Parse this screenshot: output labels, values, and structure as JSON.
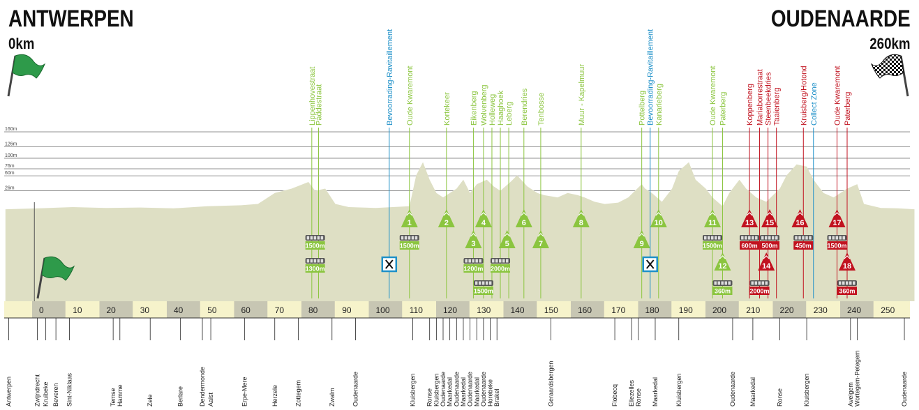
{
  "header": {
    "start_name": "ANTWERPEN",
    "start_km": "0km",
    "finish_name": "OUDENAARDE",
    "finish_km": "260km"
  },
  "colors": {
    "profile_fill": "#dedfc4",
    "axis_band": "#f6f3cb",
    "axis_block": "#c7c6b3",
    "green": "#8bc53f",
    "red": "#c1121f",
    "blue": "#1e90c8",
    "grid": "#777777"
  },
  "chart_data": {
    "type": "area",
    "x_axis": {
      "min": -10,
      "max": 260,
      "ticks": [
        0,
        10,
        20,
        30,
        40,
        50,
        60,
        70,
        80,
        90,
        100,
        110,
        120,
        130,
        140,
        150,
        160,
        170,
        180,
        190,
        200,
        210,
        220,
        230,
        240,
        250
      ]
    },
    "altitude_labels": [
      "160m",
      "126m",
      "100m",
      "76m",
      "60m",
      "26m"
    ],
    "altitude_values": [
      160,
      126,
      100,
      76,
      60,
      26
    ],
    "profile_points": [
      [
        -10,
        3
      ],
      [
        0,
        5
      ],
      [
        10,
        8
      ],
      [
        20,
        6
      ],
      [
        30,
        7
      ],
      [
        40,
        5
      ],
      [
        50,
        10
      ],
      [
        60,
        12
      ],
      [
        65,
        15
      ],
      [
        70,
        40
      ],
      [
        75,
        50
      ],
      [
        80,
        65
      ],
      [
        82,
        45
      ],
      [
        85,
        50
      ],
      [
        88,
        15
      ],
      [
        92,
        8
      ],
      [
        100,
        6
      ],
      [
        110,
        10
      ],
      [
        112,
        80
      ],
      [
        114,
        110
      ],
      [
        116,
        70
      ],
      [
        118,
        40
      ],
      [
        120,
        30
      ],
      [
        124,
        50
      ],
      [
        126,
        70
      ],
      [
        128,
        40
      ],
      [
        130,
        60
      ],
      [
        133,
        70
      ],
      [
        135,
        55
      ],
      [
        137,
        45
      ],
      [
        140,
        65
      ],
      [
        142,
        80
      ],
      [
        145,
        55
      ],
      [
        148,
        40
      ],
      [
        150,
        35
      ],
      [
        154,
        30
      ],
      [
        157,
        40
      ],
      [
        160,
        35
      ],
      [
        162,
        30
      ],
      [
        165,
        20
      ],
      [
        168,
        15
      ],
      [
        172,
        18
      ],
      [
        175,
        30
      ],
      [
        177,
        45
      ],
      [
        179,
        60
      ],
      [
        180,
        50
      ],
      [
        182,
        40
      ],
      [
        185,
        20
      ],
      [
        188,
        50
      ],
      [
        190,
        90
      ],
      [
        193,
        110
      ],
      [
        195,
        70
      ],
      [
        198,
        50
      ],
      [
        200,
        30
      ],
      [
        203,
        10
      ],
      [
        205,
        40
      ],
      [
        208,
        70
      ],
      [
        210,
        50
      ],
      [
        213,
        30
      ],
      [
        216,
        20
      ],
      [
        220,
        50
      ],
      [
        222,
        80
      ],
      [
        225,
        105
      ],
      [
        228,
        100
      ],
      [
        230,
        70
      ],
      [
        233,
        40
      ],
      [
        236,
        30
      ],
      [
        240,
        50
      ],
      [
        243,
        60
      ],
      [
        245,
        15
      ],
      [
        250,
        6
      ],
      [
        255,
        5
      ],
      [
        260,
        3
      ]
    ],
    "climbs": [
      {
        "num": "1",
        "name": "Oude Kwaremont",
        "km": 110,
        "color": "green"
      },
      {
        "num": "2",
        "name": "Kortekeer",
        "km": 121,
        "color": "green"
      },
      {
        "num": "3",
        "name": "Eikenberg",
        "km": 129,
        "color": "green"
      },
      {
        "num": "4",
        "name": "Wolvenberg",
        "km": 132,
        "color": "green"
      },
      {
        "num": "5",
        "name": "Leberg",
        "km": 139,
        "color": "green"
      },
      {
        "num": "6",
        "name": "Berendries",
        "km": 144,
        "color": "green"
      },
      {
        "num": "7",
        "name": "Tenbosse",
        "km": 149,
        "color": "green"
      },
      {
        "num": "8",
        "name": "Muur - Kapelmuur",
        "km": 161,
        "color": "green"
      },
      {
        "num": "9",
        "name": "Pottelberg",
        "km": 179,
        "color": "green"
      },
      {
        "num": "10",
        "name": "Kanarieberg",
        "km": 184,
        "color": "green"
      },
      {
        "num": "11",
        "name": "Oude Kwaremont",
        "km": 200,
        "color": "green"
      },
      {
        "num": "12",
        "name": "Paterberg",
        "km": 203,
        "color": "green"
      },
      {
        "num": "13",
        "name": "Koppenberg",
        "km": 211,
        "color": "red"
      },
      {
        "num": "14",
        "name": "Mariaborrestraat",
        "km": 216,
        "color": "red"
      },
      {
        "num": "15",
        "name": "Steenbeekdries",
        "km": 217,
        "color": "red"
      },
      {
        "num": "16",
        "name": "Taaienberg",
        "km": 226,
        "color": "red"
      },
      {
        "num": "17",
        "name": "Kruisberg/Hotond",
        "km": 237,
        "color": "red"
      },
      {
        "num": "18",
        "name": "Oude Kwaremont",
        "km": 240,
        "color": "red"
      }
    ],
    "top_labels": [
      {
        "text": "Lippenhovestraat",
        "km": 81,
        "color": "green"
      },
      {
        "text": "Paddestraat",
        "km": 83,
        "color": "green"
      },
      {
        "text": "Bevoorrading-Ravitaillement",
        "km": 104,
        "color": "blue"
      },
      {
        "text": "Oude Kwaremont",
        "km": 110,
        "color": "green"
      },
      {
        "text": "Kortekeer",
        "km": 121,
        "color": "green"
      },
      {
        "text": "Eikenberg",
        "km": 129,
        "color": "green"
      },
      {
        "text": "Wolvenberg",
        "km": 132,
        "color": "green"
      },
      {
        "text": "Holleweg",
        "km": 134.5,
        "color": "green"
      },
      {
        "text": "Haaghoek",
        "km": 137,
        "color": "green"
      },
      {
        "text": "Leberg",
        "km": 139.5,
        "color": "green"
      },
      {
        "text": "Berendries",
        "km": 144,
        "color": "green"
      },
      {
        "text": "Tenbosse",
        "km": 149,
        "color": "green"
      },
      {
        "text": "Muur - Kapelmuur",
        "km": 161,
        "color": "green"
      },
      {
        "text": "Pottelberg",
        "km": 179,
        "color": "green"
      },
      {
        "text": "Bevoorrading-Ravitaillement",
        "km": 181.5,
        "color": "blue"
      },
      {
        "text": "Kanarieberg",
        "km": 184,
        "color": "green"
      },
      {
        "text": "Oude Kwaremont",
        "km": 200,
        "color": "green"
      },
      {
        "text": "Paterberg",
        "km": 203,
        "color": "green"
      },
      {
        "text": "Koppenberg",
        "km": 211,
        "color": "red"
      },
      {
        "text": "Mariaborrestraat",
        "km": 214,
        "color": "red"
      },
      {
        "text": "Steenbeekdries",
        "km": 216.5,
        "color": "red"
      },
      {
        "text": "Taaienberg",
        "km": 219,
        "color": "red"
      },
      {
        "text": "Kruisberg/Hotond",
        "km": 227,
        "color": "red"
      },
      {
        "text": "Collect Zone",
        "km": 230,
        "color": "blue"
      },
      {
        "text": "Oude Kwaremont",
        "km": 237,
        "color": "red"
      },
      {
        "text": "Paterberg",
        "km": 240,
        "color": "red"
      }
    ],
    "cobbles": [
      {
        "label": "1500m",
        "km": 82,
        "row": 0,
        "color": "green"
      },
      {
        "label": "1300m",
        "km": 82,
        "row": 1,
        "color": "green"
      },
      {
        "label": "1500m",
        "km": 110,
        "row": 0,
        "color": "green"
      },
      {
        "label": "1200m",
        "km": 129,
        "row": 1,
        "color": "green"
      },
      {
        "label": "2000m",
        "km": 137,
        "row": 1,
        "color": "green"
      },
      {
        "label": "1500m",
        "km": 132,
        "row": 2,
        "color": "green"
      },
      {
        "label": "1500m",
        "km": 200,
        "row": 0,
        "color": "green"
      },
      {
        "label": "360m",
        "km": 203,
        "row": 2,
        "color": "green"
      },
      {
        "label": "600m",
        "km": 211,
        "row": 0,
        "color": "red"
      },
      {
        "label": "500m",
        "km": 217,
        "row": 0,
        "color": "red"
      },
      {
        "label": "2000m",
        "km": 214,
        "row": 2,
        "color": "red"
      },
      {
        "label": "450m",
        "km": 227,
        "row": 0,
        "color": "red"
      },
      {
        "label": "1500m",
        "km": 237,
        "row": 0,
        "color": "red"
      },
      {
        "label": "360m",
        "km": 240,
        "row": 2,
        "color": "red"
      }
    ],
    "feed_zones": [
      {
        "km": 104
      },
      {
        "km": 181.5
      }
    ],
    "places": [
      {
        "name": "Antwerpen",
        "km": -9
      },
      {
        "name": "Zwijndrecht",
        "km": -0.5
      },
      {
        "name": "Kruibeke",
        "km": 2
      },
      {
        "name": "Beveren",
        "km": 5
      },
      {
        "name": "Sint-Niklaas",
        "km": 9
      },
      {
        "name": "Temse",
        "km": 22
      },
      {
        "name": "Hamme",
        "km": 24
      },
      {
        "name": "Zele",
        "km": 33
      },
      {
        "name": "Berlare",
        "km": 42
      },
      {
        "name": "Dendermonde",
        "km": 48.5
      },
      {
        "name": "Aalst",
        "km": 51
      },
      {
        "name": "Erpe-Mere",
        "km": 61
      },
      {
        "name": "Herzele",
        "km": 70
      },
      {
        "name": "Zottegem",
        "km": 77
      },
      {
        "name": "Zwalm",
        "km": 87
      },
      {
        "name": "Oudenaarde",
        "km": 94
      },
      {
        "name": "Kluisbergen",
        "km": 111
      },
      {
        "name": "Ronse",
        "km": 116
      },
      {
        "name": "Kluisbergen",
        "km": 118
      },
      {
        "name": "Oudenaarde",
        "km": 120
      },
      {
        "name": "Maarkedal",
        "km": 122
      },
      {
        "name": "Oudenaarde",
        "km": 124
      },
      {
        "name": "Maarkedal",
        "km": 126
      },
      {
        "name": "Oudenaarde",
        "km": 128
      },
      {
        "name": "Maarkedal",
        "km": 130
      },
      {
        "name": "Oudenaarde",
        "km": 132
      },
      {
        "name": "Horebeke",
        "km": 134
      },
      {
        "name": "Brakel",
        "km": 136
      },
      {
        "name": "Geraardsbergen",
        "km": 152
      },
      {
        "name": "Flobecq",
        "km": 171
      },
      {
        "name": "Ellezelles",
        "km": 176
      },
      {
        "name": "Ronse",
        "km": 178
      },
      {
        "name": "Maarkedal",
        "km": 183
      },
      {
        "name": "Kluisbergen",
        "km": 190
      },
      {
        "name": "Oudenaarde",
        "km": 206
      },
      {
        "name": "Maarkedal",
        "km": 212
      },
      {
        "name": "Ronse",
        "km": 220
      },
      {
        "name": "Kluisbergen",
        "km": 228
      },
      {
        "name": "Avelgem",
        "km": 241
      },
      {
        "name": "Wortegem-Petegem",
        "km": 243
      },
      {
        "name": "Oudenaarde",
        "km": 257
      }
    ]
  }
}
